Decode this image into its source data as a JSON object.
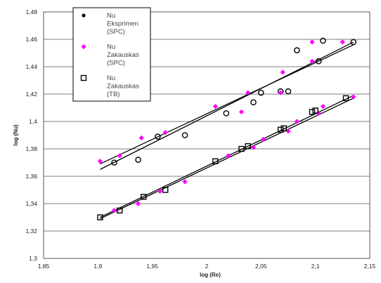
{
  "chart_data": {
    "type": "scatter",
    "xlabel": "log (Re)",
    "ylabel": "log (Nu)",
    "xlim": [
      1.85,
      2.15
    ],
    "ylim": [
      1.3,
      1.48
    ],
    "xticks": [
      "1,85",
      "1,9",
      "1,95",
      "2",
      "2,05",
      "2,1",
      "2,15"
    ],
    "yticks": [
      "1,3",
      "1,32",
      "1,34",
      "1,36",
      "1,38",
      "1,4",
      "1,42",
      "1,44",
      "1,46",
      "1,48"
    ],
    "grid": "horizontal",
    "legend_position": "top-left",
    "series": [
      {
        "name": "Nu Eksprimen (SPC)",
        "marker": "open-circle",
        "color": "#000000",
        "points": [
          [
            1.915,
            1.37
          ],
          [
            1.937,
            1.372
          ],
          [
            1.955,
            1.389
          ],
          [
            1.98,
            1.39
          ],
          [
            2.018,
            1.406
          ],
          [
            2.043,
            1.414
          ],
          [
            2.05,
            1.421
          ],
          [
            2.068,
            1.422
          ],
          [
            2.075,
            1.422
          ],
          [
            2.083,
            1.452
          ],
          [
            2.103,
            1.444
          ],
          [
            2.107,
            1.459
          ],
          [
            2.135,
            1.458
          ]
        ]
      },
      {
        "name": "Nu Zakauskas (SPC)",
        "marker": "diamond",
        "color": "#ff00ff",
        "points": [
          [
            1.902,
            1.371
          ],
          [
            1.92,
            1.375
          ],
          [
            1.94,
            1.388
          ],
          [
            1.962,
            1.392
          ],
          [
            2.008,
            1.411
          ],
          [
            2.038,
            1.421
          ],
          [
            2.07,
            1.436
          ],
          [
            2.097,
            1.444
          ],
          [
            2.125,
            1.458
          ],
          [
            1.915,
            1.335
          ],
          [
            1.937,
            1.34
          ],
          [
            1.957,
            1.349
          ],
          [
            1.98,
            1.356
          ],
          [
            2.02,
            1.375
          ],
          [
            2.043,
            1.381
          ],
          [
            2.052,
            1.387
          ],
          [
            2.075,
            1.393
          ],
          [
            2.083,
            1.4
          ],
          [
            2.103,
            1.406
          ],
          [
            2.107,
            1.411
          ],
          [
            2.135,
            1.418
          ],
          [
            2.032,
            1.407
          ],
          [
            2.068,
            1.421
          ],
          [
            2.097,
            1.458
          ]
        ]
      },
      {
        "name": "Nu Zakauskas (TB)",
        "marker": "open-square",
        "color": "#000000",
        "points": [
          [
            1.902,
            1.33
          ],
          [
            1.92,
            1.335
          ],
          [
            1.942,
            1.345
          ],
          [
            1.962,
            1.35
          ],
          [
            2.008,
            1.371
          ],
          [
            2.032,
            1.38
          ],
          [
            2.038,
            1.382
          ],
          [
            2.068,
            1.394
          ],
          [
            2.071,
            1.395
          ],
          [
            2.097,
            1.407
          ],
          [
            2.1,
            1.408
          ],
          [
            2.128,
            1.417
          ]
        ]
      }
    ],
    "trendlines": [
      {
        "color": "#000000",
        "x": [
          1.902,
          2.135
        ],
        "y": [
          1.365,
          1.458
        ]
      },
      {
        "color": "#000000",
        "x": [
          1.902,
          2.135
        ],
        "y": [
          1.369,
          1.456
        ]
      },
      {
        "color": "#000000",
        "x": [
          1.902,
          2.135
        ],
        "y": [
          1.33,
          1.419
        ]
      },
      {
        "color": "#000000",
        "x": [
          1.902,
          2.135
        ],
        "y": [
          1.329,
          1.417
        ]
      }
    ],
    "legend": {
      "entries": [
        {
          "marker": "dot",
          "color": "#000000",
          "lines": [
            "Nu",
            "Eksprimen",
            "(SPC)"
          ]
        },
        {
          "marker": "diamond",
          "color": "#ff00ff",
          "lines": [
            "Nu",
            "Zakauskas",
            "(SPC)"
          ]
        },
        {
          "marker": "open-square",
          "color": "#000000",
          "lines": [
            "Nu",
            "Zakauskas",
            "(TB)"
          ]
        }
      ]
    }
  }
}
